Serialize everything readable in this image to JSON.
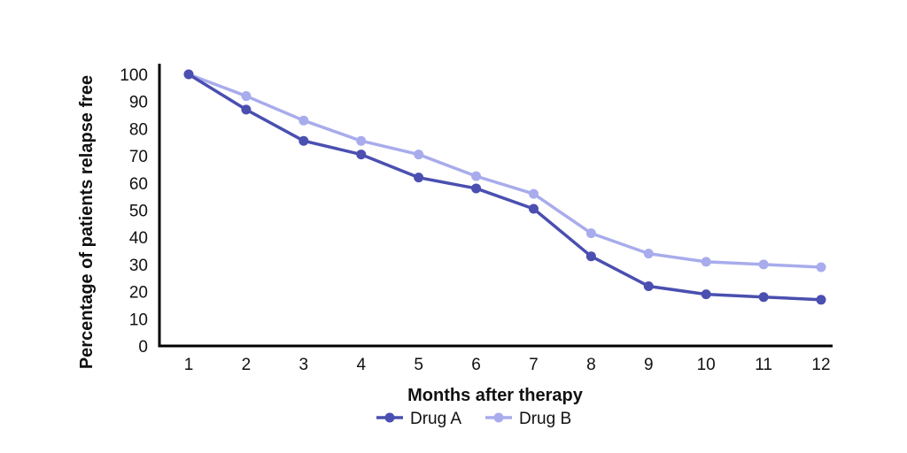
{
  "chart_data": {
    "type": "line",
    "title": "",
    "xlabel": "Months after therapy",
    "ylabel": "Percentage of patients relapse free",
    "categories": [
      "1",
      "2",
      "3",
      "4",
      "5",
      "6",
      "7",
      "8",
      "9",
      "10",
      "11",
      "12"
    ],
    "ylim": [
      0,
      100
    ],
    "yticks": [
      "0",
      "10",
      "20",
      "30",
      "40",
      "50",
      "60",
      "70",
      "80",
      "90",
      "100"
    ],
    "grid": false,
    "legend_position": "bottom",
    "series": [
      {
        "name": "Drug A",
        "color": "#4a4fb0",
        "values": [
          100,
          87,
          75.5,
          70.5,
          62,
          58,
          50.5,
          33,
          22,
          19,
          18,
          17
        ]
      },
      {
        "name": "Drug B",
        "color": "#a8acec",
        "values": [
          100,
          92,
          83,
          75.5,
          70.5,
          62.5,
          56,
          41.5,
          34,
          31,
          30,
          29
        ]
      }
    ]
  }
}
